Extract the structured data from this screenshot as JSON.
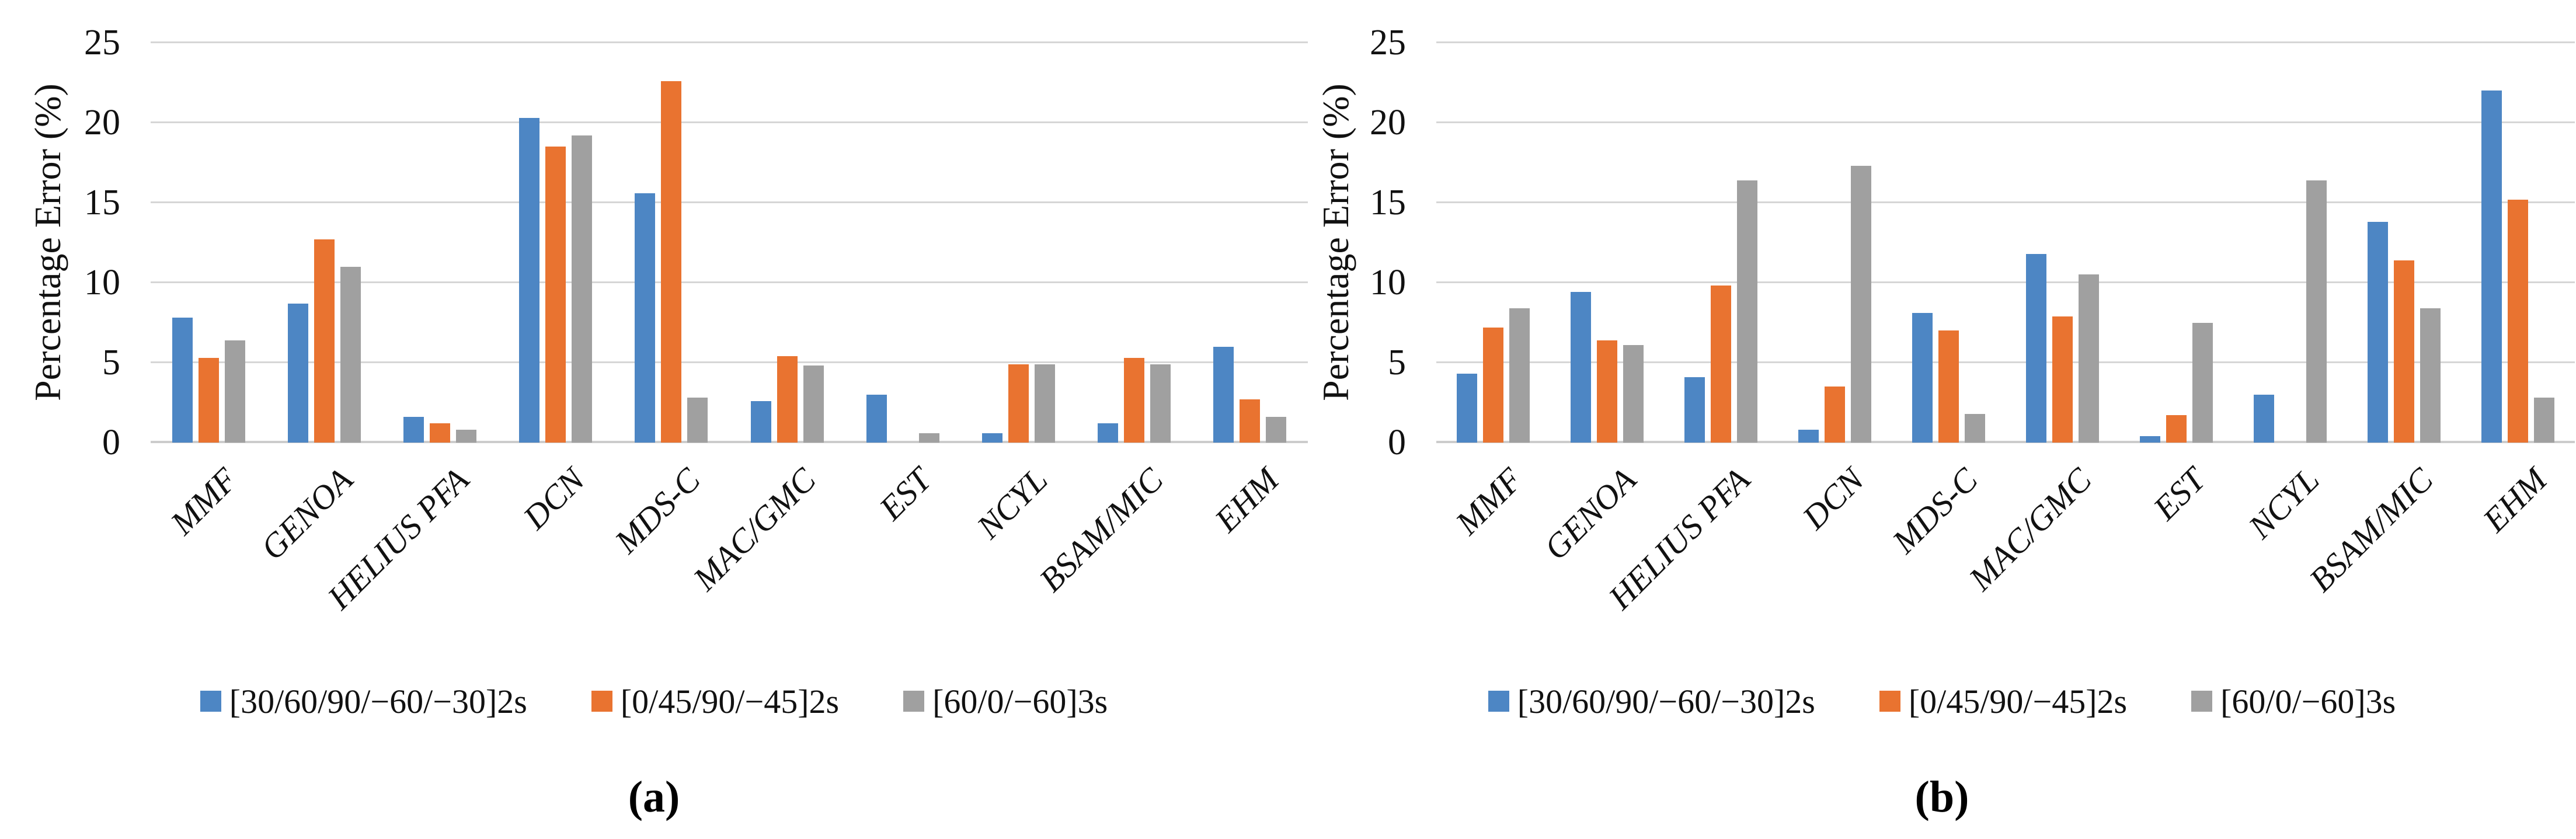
{
  "chart_data": [
    {
      "type": "bar",
      "panel": "a",
      "caption": "(a)",
      "ylabel": "Percentage Error (%)",
      "ylim": [
        0,
        25
      ],
      "ytick_step": 5,
      "yticks": [
        "0",
        "5",
        "10",
        "15",
        "20",
        "25"
      ],
      "grid": "horizontal",
      "legend_position": "bottom",
      "categories": [
        "MMF",
        "GENOA",
        "HELIUS PFA",
        "DCN",
        "MDS-C",
        "MAC/GMC",
        "EST",
        "NCYL",
        "BSAM/MIC",
        "EHM"
      ],
      "series": [
        {
          "name": "[30/60/90/−60/−30]2s",
          "color": "#4D86C4",
          "values": [
            7.8,
            8.7,
            1.6,
            20.3,
            15.6,
            2.6,
            3.0,
            0.6,
            1.2,
            6.0
          ]
        },
        {
          "name": "[0/45/90/−45]2s",
          "color": "#E97330",
          "values": [
            5.3,
            12.7,
            1.2,
            18.5,
            22.6,
            5.4,
            0,
            4.9,
            5.3,
            2.7
          ]
        },
        {
          "name": "[60/0/−60]3s",
          "color": "#A0A0A0",
          "values": [
            6.4,
            11.0,
            0.8,
            19.2,
            2.8,
            4.8,
            0.6,
            4.9,
            4.9,
            1.6
          ]
        }
      ]
    },
    {
      "type": "bar",
      "panel": "b",
      "caption": "(b)",
      "ylabel": "Percentage Error (%)",
      "ylim": [
        0,
        25
      ],
      "ytick_step": 5,
      "yticks": [
        "0",
        "5",
        "10",
        "15",
        "20",
        "25"
      ],
      "grid": "horizontal",
      "legend_position": "bottom",
      "categories": [
        "MMF",
        "GENOA",
        "HELIUS PFA",
        "DCN",
        "MDS-C",
        "MAC/GMC",
        "EST",
        "NCYL",
        "BSAM/MIC",
        "EHM"
      ],
      "series": [
        {
          "name": "[30/60/90/−60/−30]2s",
          "color": "#4D86C4",
          "values": [
            4.3,
            9.4,
            4.1,
            0.8,
            8.1,
            11.8,
            0.4,
            3.0,
            13.8,
            22.0
          ]
        },
        {
          "name": "[0/45/90/−45]2s",
          "color": "#E97330",
          "values": [
            7.2,
            6.4,
            9.8,
            3.5,
            7.0,
            7.9,
            1.7,
            0,
            11.4,
            15.2
          ]
        },
        {
          "name": "[60/0/−60]3s",
          "color": "#A0A0A0",
          "values": [
            8.4,
            6.1,
            16.4,
            17.3,
            1.8,
            10.5,
            7.5,
            16.4,
            8.4,
            2.8
          ]
        }
      ]
    }
  ]
}
